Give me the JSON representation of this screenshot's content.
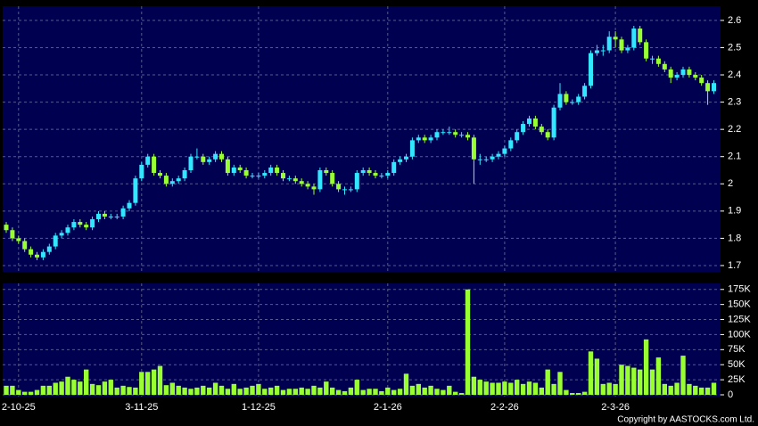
{
  "chart_data": [
    {
      "type": "candlestick",
      "up_color": "#33e6ff",
      "down_color": "#99ff33",
      "grid": true,
      "ylim": [
        1.677,
        2.652
      ],
      "yticks": [
        1.7,
        1.8,
        1.9,
        2,
        2.1,
        2.2,
        2.3,
        2.4,
        2.5,
        2.6
      ],
      "open": [
        1.85,
        1.83,
        1.8,
        1.79,
        1.76,
        1.74,
        1.73,
        1.75,
        1.77,
        1.81,
        1.82,
        1.84,
        1.86,
        1.85,
        1.84,
        1.87,
        1.89,
        1.88,
        1.88,
        1.88,
        1.91,
        1.93,
        2.02,
        2.07,
        2.1,
        2.04,
        2.03,
        2.0,
        2.01,
        2.02,
        2.05,
        2.1,
        2.1,
        2.08,
        2.09,
        2.11,
        2.09,
        2.04,
        2.06,
        2.05,
        2.03,
        2.03,
        2.03,
        2.04,
        2.06,
        2.04,
        2.02,
        2.02,
        2.01,
        2.0,
        1.99,
        1.98,
        2.05,
        2.04,
        2.0,
        1.98,
        1.98,
        1.98,
        2.04,
        2.05,
        2.04,
        2.03,
        2.03,
        2.04,
        2.08,
        2.09,
        2.1,
        2.16,
        2.17,
        2.16,
        2.17,
        2.19,
        2.19,
        2.19,
        2.18,
        2.18,
        2.17,
        2.09,
        2.09,
        2.09,
        2.1,
        2.11,
        2.13,
        2.16,
        2.19,
        2.22,
        2.24,
        2.21,
        2.19,
        2.17,
        2.28,
        2.33,
        2.3,
        2.3,
        2.32,
        2.36,
        2.48,
        2.49,
        2.49,
        2.54,
        2.53,
        2.49,
        2.5,
        2.57,
        2.52,
        2.46,
        2.46,
        2.44,
        2.42,
        2.39,
        2.4,
        2.42,
        2.4,
        2.39,
        2.37,
        2.34
      ],
      "high": [
        1.86,
        1.84,
        1.81,
        1.8,
        1.77,
        1.75,
        1.76,
        1.78,
        1.82,
        1.83,
        1.85,
        1.87,
        1.87,
        1.86,
        1.88,
        1.9,
        1.9,
        1.89,
        1.89,
        1.92,
        1.94,
        2.03,
        2.08,
        2.11,
        2.11,
        2.05,
        2.04,
        2.02,
        2.03,
        2.06,
        2.11,
        2.13,
        2.11,
        2.1,
        2.12,
        2.12,
        2.1,
        2.07,
        2.07,
        2.06,
        2.04,
        2.04,
        2.05,
        2.07,
        2.07,
        2.05,
        2.03,
        2.03,
        2.02,
        2.01,
        2.0,
        2.06,
        2.06,
        2.05,
        2.01,
        1.99,
        1.99,
        2.05,
        2.06,
        2.06,
        2.05,
        2.04,
        2.05,
        2.09,
        2.1,
        2.11,
        2.17,
        2.18,
        2.18,
        2.18,
        2.2,
        2.2,
        2.21,
        2.2,
        2.19,
        2.19,
        2.18,
        2.11,
        2.1,
        2.11,
        2.12,
        2.14,
        2.17,
        2.2,
        2.23,
        2.25,
        2.25,
        2.22,
        2.2,
        2.29,
        2.37,
        2.34,
        2.31,
        2.33,
        2.37,
        2.49,
        2.51,
        2.51,
        2.56,
        2.56,
        2.54,
        2.51,
        2.58,
        2.58,
        2.53,
        2.47,
        2.47,
        2.45,
        2.43,
        2.41,
        2.43,
        2.43,
        2.41,
        2.4,
        2.38,
        2.38
      ],
      "low": [
        1.82,
        1.79,
        1.78,
        1.75,
        1.73,
        1.72,
        1.72,
        1.74,
        1.76,
        1.8,
        1.81,
        1.83,
        1.84,
        1.83,
        1.83,
        1.86,
        1.87,
        1.87,
        1.87,
        1.87,
        1.9,
        1.92,
        2.01,
        2.06,
        2.03,
        2.02,
        1.99,
        1.99,
        2.0,
        2.01,
        2.04,
        2.09,
        2.07,
        2.07,
        2.08,
        2.08,
        2.03,
        2.03,
        2.04,
        2.02,
        2.02,
        2.02,
        2.02,
        2.03,
        2.03,
        2.01,
        2.01,
        2.0,
        1.99,
        1.98,
        1.96,
        1.97,
        2.03,
        1.99,
        1.97,
        1.96,
        1.97,
        1.97,
        2.03,
        2.03,
        2.02,
        2.02,
        2.02,
        2.03,
        2.07,
        2.08,
        2.09,
        2.15,
        2.15,
        2.15,
        2.16,
        2.18,
        2.18,
        2.17,
        2.17,
        2.16,
        2.0,
        2.07,
        2.08,
        2.08,
        2.09,
        2.1,
        2.12,
        2.15,
        2.18,
        2.21,
        2.2,
        2.18,
        2.16,
        2.16,
        2.27,
        2.29,
        2.29,
        2.29,
        2.31,
        2.35,
        2.47,
        2.47,
        2.48,
        2.5,
        2.48,
        2.48,
        2.49,
        2.51,
        2.45,
        2.44,
        2.43,
        2.41,
        2.37,
        2.38,
        2.39,
        2.39,
        2.38,
        2.36,
        2.29,
        2.33
      ],
      "close": [
        1.83,
        1.8,
        1.79,
        1.76,
        1.74,
        1.73,
        1.75,
        1.77,
        1.81,
        1.82,
        1.84,
        1.86,
        1.85,
        1.84,
        1.87,
        1.89,
        1.88,
        1.88,
        1.88,
        1.91,
        1.93,
        2.02,
        2.07,
        2.1,
        2.04,
        2.03,
        2.0,
        2.01,
        2.02,
        2.05,
        2.1,
        2.1,
        2.08,
        2.09,
        2.11,
        2.09,
        2.04,
        2.06,
        2.05,
        2.03,
        2.03,
        2.03,
        2.04,
        2.06,
        2.04,
        2.02,
        2.02,
        2.01,
        2.0,
        1.99,
        1.98,
        2.05,
        2.04,
        2.0,
        1.98,
        1.98,
        1.98,
        2.04,
        2.05,
        2.04,
        2.03,
        2.03,
        2.04,
        2.08,
        2.09,
        2.1,
        2.16,
        2.17,
        2.16,
        2.17,
        2.19,
        2.19,
        2.19,
        2.18,
        2.18,
        2.17,
        2.09,
        2.09,
        2.09,
        2.1,
        2.11,
        2.13,
        2.16,
        2.19,
        2.22,
        2.24,
        2.21,
        2.19,
        2.17,
        2.28,
        2.33,
        2.3,
        2.3,
        2.32,
        2.36,
        2.48,
        2.49,
        2.49,
        2.54,
        2.53,
        2.49,
        2.5,
        2.57,
        2.52,
        2.46,
        2.46,
        2.44,
        2.42,
        2.39,
        2.4,
        2.42,
        2.4,
        2.39,
        2.37,
        2.34,
        2.37
      ]
    },
    {
      "type": "bar",
      "color": "#99ff33",
      "grid": true,
      "ylim": [
        0,
        185000
      ],
      "yticks": [
        0,
        {
          "value": 25000,
          "label": "25K"
        },
        {
          "value": 50000,
          "label": "50K"
        },
        {
          "value": 75000,
          "label": "75K"
        },
        {
          "value": 100000,
          "label": "100K"
        },
        {
          "value": 125000,
          "label": "125K"
        },
        {
          "value": 150000,
          "label": "150K"
        },
        {
          "value": 175000,
          "label": "175K"
        }
      ],
      "categories": [
        null,
        null,
        "2-10-25",
        null,
        null,
        null,
        null,
        null,
        null,
        null,
        null,
        null,
        null,
        null,
        null,
        null,
        null,
        null,
        null,
        null,
        null,
        null,
        "3-11-25",
        null,
        null,
        null,
        null,
        null,
        null,
        null,
        null,
        null,
        null,
        null,
        null,
        null,
        null,
        null,
        null,
        null,
        null,
        "1-12-25",
        null,
        null,
        null,
        null,
        null,
        null,
        null,
        null,
        null,
        null,
        null,
        null,
        null,
        null,
        null,
        null,
        null,
        null,
        null,
        null,
        "2-1-26",
        null,
        null,
        null,
        null,
        null,
        null,
        null,
        null,
        null,
        null,
        null,
        null,
        null,
        null,
        null,
        null,
        null,
        null,
        "2-2-26",
        null,
        null,
        null,
        null,
        null,
        null,
        null,
        null,
        null,
        null,
        null,
        null,
        null,
        null,
        null,
        null,
        null,
        "2-3-26",
        null,
        null,
        null,
        null,
        null,
        null,
        null,
        null,
        null,
        null,
        null,
        null,
        null,
        null,
        null,
        null
      ],
      "values": [
        15000,
        15000,
        8000,
        5000,
        5000,
        8000,
        15000,
        15000,
        20000,
        22000,
        30000,
        25000,
        22000,
        42000,
        18000,
        16000,
        22000,
        25000,
        12000,
        15000,
        13000,
        12000,
        38000,
        38000,
        42000,
        48000,
        16000,
        20000,
        15000,
        12000,
        10000,
        12000,
        15000,
        12000,
        20000,
        15000,
        10000,
        18000,
        10000,
        12000,
        15000,
        18000,
        10000,
        12000,
        15000,
        8000,
        10000,
        10000,
        12000,
        10000,
        15000,
        12000,
        22000,
        12000,
        8000,
        6000,
        12000,
        25000,
        8000,
        10000,
        10000,
        6000,
        12000,
        8000,
        10000,
        35000,
        15000,
        18000,
        12000,
        15000,
        10000,
        8000,
        15000,
        5000,
        3000,
        175000,
        30000,
        25000,
        22000,
        20000,
        20000,
        22000,
        20000,
        25000,
        18000,
        22000,
        20000,
        12000,
        42000,
        18000,
        38000,
        8000,
        3000,
        3000,
        5000,
        72000,
        60000,
        18000,
        20000,
        18000,
        50000,
        48000,
        45000,
        42000,
        92000,
        42000,
        62000,
        18000,
        15000,
        20000,
        65000,
        18000,
        15000,
        12000,
        12000,
        20000
      ]
    }
  ],
  "copyright": "Copyright by AASTOCKS.com Ltd."
}
